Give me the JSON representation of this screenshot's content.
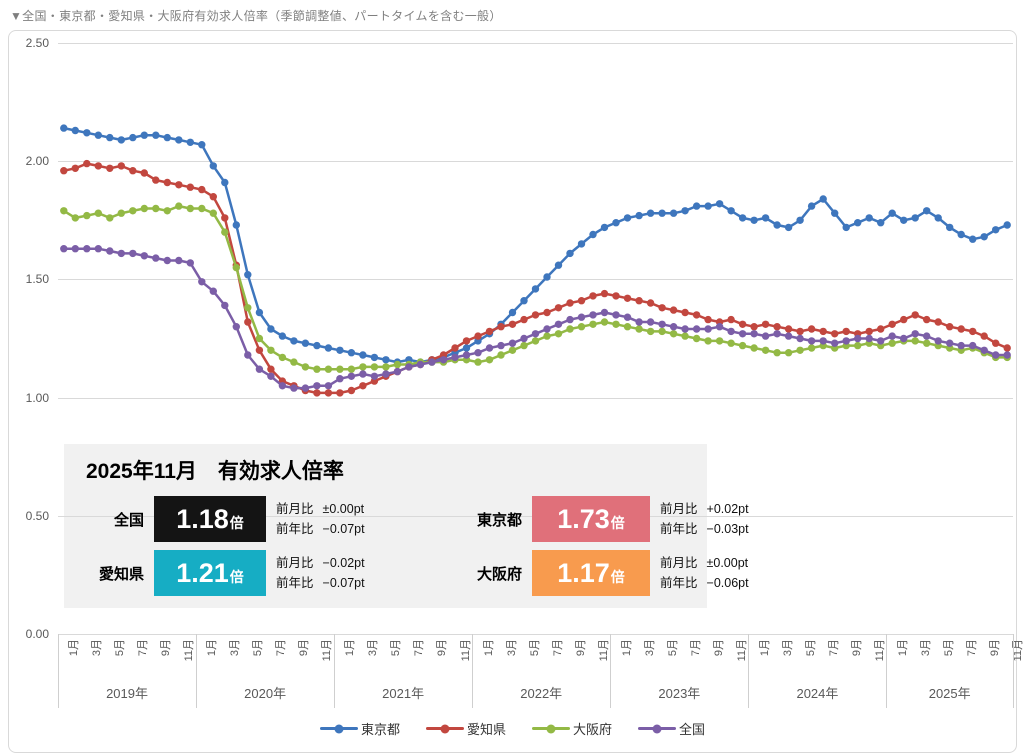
{
  "title": "▼全国・東京都・愛知県・大阪府有効求人倍率（季節調整値、パートタイムを含む一般）",
  "panel": {
    "title": "2025年11月　有効求人倍率",
    "entries": [
      {
        "key": "national",
        "region": "全国",
        "value": "1.18",
        "unit": "倍",
        "box_color": "#141414",
        "mom_label": "前月比",
        "mom": "±0.00pt",
        "yoy_label": "前年比",
        "yoy": "−0.07pt"
      },
      {
        "key": "tokyo",
        "region": "東京都",
        "value": "1.73",
        "unit": "倍",
        "box_color": "#e0707a",
        "mom_label": "前月比",
        "mom": "+0.02pt",
        "yoy_label": "前年比",
        "yoy": "−0.03pt"
      },
      {
        "key": "aichi",
        "region": "愛知県",
        "value": "1.21",
        "unit": "倍",
        "box_color": "#16adc4",
        "mom_label": "前月比",
        "mom": "−0.02pt",
        "yoy_label": "前年比",
        "yoy": "−0.07pt"
      },
      {
        "key": "osaka",
        "region": "大阪府",
        "value": "1.17",
        "unit": "倍",
        "box_color": "#f89b4e",
        "mom_label": "前月比",
        "mom": "±0.00pt",
        "yoy_label": "前年比",
        "yoy": "−0.06pt"
      }
    ]
  },
  "chart_data": {
    "type": "line",
    "y_axis": {
      "min": 0,
      "max": 2.5,
      "step": 0.5,
      "tick_labels": [
        "0.00",
        "0.50",
        "1.00",
        "1.50",
        "2.00",
        "2.50"
      ]
    },
    "x_axis": {
      "years": [
        {
          "label": "2019年",
          "months": 12
        },
        {
          "label": "2020年",
          "months": 12
        },
        {
          "label": "2021年",
          "months": 12
        },
        {
          "label": "2022年",
          "months": 12
        },
        {
          "label": "2023年",
          "months": 12
        },
        {
          "label": "2024年",
          "months": 12
        },
        {
          "label": "2025年",
          "months": 11
        }
      ],
      "month_tick_labels": [
        "1月",
        "3月",
        "5月",
        "7月",
        "9月",
        "11月"
      ]
    },
    "series": [
      {
        "key": "tokyo",
        "name": "東京都",
        "color": "#3e76bd",
        "values": [
          2.14,
          2.13,
          2.12,
          2.11,
          2.1,
          2.09,
          2.1,
          2.11,
          2.11,
          2.1,
          2.09,
          2.08,
          2.07,
          1.98,
          1.91,
          1.73,
          1.52,
          1.36,
          1.29,
          1.26,
          1.24,
          1.23,
          1.22,
          1.21,
          1.2,
          1.19,
          1.18,
          1.17,
          1.16,
          1.15,
          1.16,
          1.15,
          1.16,
          1.17,
          1.19,
          1.21,
          1.24,
          1.27,
          1.31,
          1.36,
          1.41,
          1.46,
          1.51,
          1.56,
          1.61,
          1.65,
          1.69,
          1.72,
          1.74,
          1.76,
          1.77,
          1.78,
          1.78,
          1.78,
          1.79,
          1.81,
          1.81,
          1.82,
          1.79,
          1.76,
          1.75,
          1.76,
          1.73,
          1.72,
          1.75,
          1.81,
          1.84,
          1.78,
          1.72,
          1.74,
          1.76,
          1.74,
          1.78,
          1.75,
          1.76,
          1.79,
          1.76,
          1.72,
          1.69,
          1.67,
          1.68,
          1.71,
          1.73
        ]
      },
      {
        "key": "aichi",
        "name": "愛知県",
        "color": "#c2473f",
        "values": [
          1.96,
          1.97,
          1.99,
          1.98,
          1.97,
          1.98,
          1.96,
          1.95,
          1.92,
          1.91,
          1.9,
          1.89,
          1.88,
          1.85,
          1.76,
          1.56,
          1.32,
          1.2,
          1.12,
          1.07,
          1.05,
          1.03,
          1.02,
          1.02,
          1.02,
          1.03,
          1.05,
          1.07,
          1.09,
          1.11,
          1.13,
          1.14,
          1.16,
          1.18,
          1.21,
          1.24,
          1.26,
          1.28,
          1.3,
          1.31,
          1.33,
          1.35,
          1.36,
          1.38,
          1.4,
          1.41,
          1.43,
          1.44,
          1.43,
          1.42,
          1.41,
          1.4,
          1.38,
          1.37,
          1.36,
          1.35,
          1.33,
          1.32,
          1.33,
          1.31,
          1.3,
          1.31,
          1.3,
          1.29,
          1.28,
          1.29,
          1.28,
          1.27,
          1.28,
          1.27,
          1.28,
          1.29,
          1.31,
          1.33,
          1.35,
          1.33,
          1.32,
          1.3,
          1.29,
          1.28,
          1.26,
          1.23,
          1.21
        ]
      },
      {
        "key": "osaka",
        "name": "大阪府",
        "color": "#93b945",
        "values": [
          1.79,
          1.76,
          1.77,
          1.78,
          1.76,
          1.78,
          1.79,
          1.8,
          1.8,
          1.79,
          1.81,
          1.8,
          1.8,
          1.78,
          1.7,
          1.55,
          1.38,
          1.25,
          1.2,
          1.17,
          1.15,
          1.13,
          1.12,
          1.12,
          1.12,
          1.12,
          1.13,
          1.13,
          1.13,
          1.14,
          1.14,
          1.15,
          1.15,
          1.15,
          1.16,
          1.16,
          1.15,
          1.16,
          1.18,
          1.2,
          1.22,
          1.24,
          1.26,
          1.27,
          1.29,
          1.3,
          1.31,
          1.32,
          1.31,
          1.3,
          1.29,
          1.28,
          1.28,
          1.27,
          1.26,
          1.25,
          1.24,
          1.24,
          1.23,
          1.22,
          1.21,
          1.2,
          1.19,
          1.19,
          1.2,
          1.21,
          1.22,
          1.21,
          1.22,
          1.22,
          1.23,
          1.22,
          1.23,
          1.24,
          1.24,
          1.23,
          1.22,
          1.21,
          1.2,
          1.21,
          1.19,
          1.17,
          1.17
        ]
      },
      {
        "key": "national",
        "name": "全国",
        "color": "#7b5ea7",
        "values": [
          1.63,
          1.63,
          1.63,
          1.63,
          1.62,
          1.61,
          1.61,
          1.6,
          1.59,
          1.58,
          1.58,
          1.57,
          1.49,
          1.45,
          1.39,
          1.3,
          1.18,
          1.12,
          1.09,
          1.05,
          1.04,
          1.04,
          1.05,
          1.05,
          1.08,
          1.09,
          1.1,
          1.09,
          1.1,
          1.11,
          1.13,
          1.14,
          1.15,
          1.16,
          1.17,
          1.18,
          1.19,
          1.21,
          1.22,
          1.23,
          1.25,
          1.27,
          1.29,
          1.31,
          1.33,
          1.34,
          1.35,
          1.36,
          1.35,
          1.34,
          1.32,
          1.32,
          1.31,
          1.3,
          1.29,
          1.29,
          1.29,
          1.3,
          1.28,
          1.27,
          1.27,
          1.26,
          1.27,
          1.26,
          1.25,
          1.24,
          1.24,
          1.23,
          1.24,
          1.25,
          1.25,
          1.24,
          1.26,
          1.25,
          1.27,
          1.26,
          1.24,
          1.23,
          1.22,
          1.22,
          1.2,
          1.18,
          1.18
        ]
      }
    ]
  }
}
